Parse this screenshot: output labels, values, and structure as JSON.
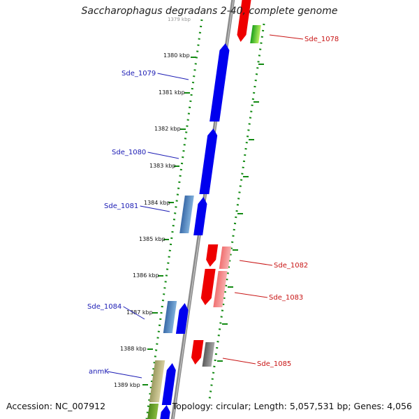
{
  "title": "Saccharophagus degradans 2-40, complete genome",
  "footer": {
    "accession": "Accession: NC_007912",
    "topology": "Topology: circular; Length: 5,057,531 bp; Genes: 4,056"
  },
  "colors": {
    "forward": "#0000ee",
    "forward_light": "#4a86c0",
    "reverse": "#ee0000",
    "reverse_light": "#f08080",
    "backbone": "#8a8a8a",
    "ticks": "#128a12",
    "label_forward": "#1a1ab4",
    "label_reverse": "#c81414"
  },
  "top_tick_label": "1379 kbp",
  "kbp_ticks": [
    {
      "label": "1380 kbp"
    },
    {
      "label": "1381 kbp"
    },
    {
      "label": "1382 kbp"
    },
    {
      "label": "1383 kbp"
    },
    {
      "label": "1384 kbp"
    },
    {
      "label": "1385 kbp"
    },
    {
      "label": "1386 kbp"
    },
    {
      "label": "1387 kbp"
    },
    {
      "label": "1388 kbp"
    },
    {
      "label": "1389 kbp"
    }
  ],
  "gene_labels": {
    "left": [
      "Sde_1079",
      "Sde_1080",
      "Sde_1081",
      "Sde_1084",
      "anmK"
    ],
    "right": [
      "Sde_1078",
      "Sde_1082",
      "Sde_1083",
      "Sde_1085"
    ]
  }
}
